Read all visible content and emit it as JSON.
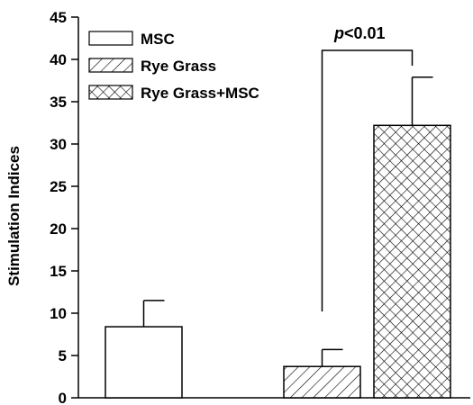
{
  "chart_data": {
    "type": "bar",
    "categories": [
      "MSC",
      "Rye Grass",
      "Rye Grass+MSC"
    ],
    "values": [
      8.4,
      3.7,
      32.2
    ],
    "errors": [
      3.1,
      2.0,
      5.7
    ],
    "fills": [
      "blank",
      "diagonal-hatch",
      "cross-hatch"
    ],
    "ylabel": "Stimulation Indices",
    "ylim": [
      0,
      45
    ],
    "yticks": [
      "0",
      "5",
      "10",
      "15",
      "20",
      "25",
      "30",
      "35",
      "40",
      "45"
    ],
    "legend": {
      "position": "top-left",
      "entries": [
        "MSC",
        "Rye Grass",
        "Rye Grass+MSC"
      ]
    },
    "annotation": {
      "p_symbol": "p",
      "p_text": "<0.01",
      "between": [
        "Rye Grass",
        "Rye Grass+MSC"
      ]
    },
    "grid": false
  }
}
